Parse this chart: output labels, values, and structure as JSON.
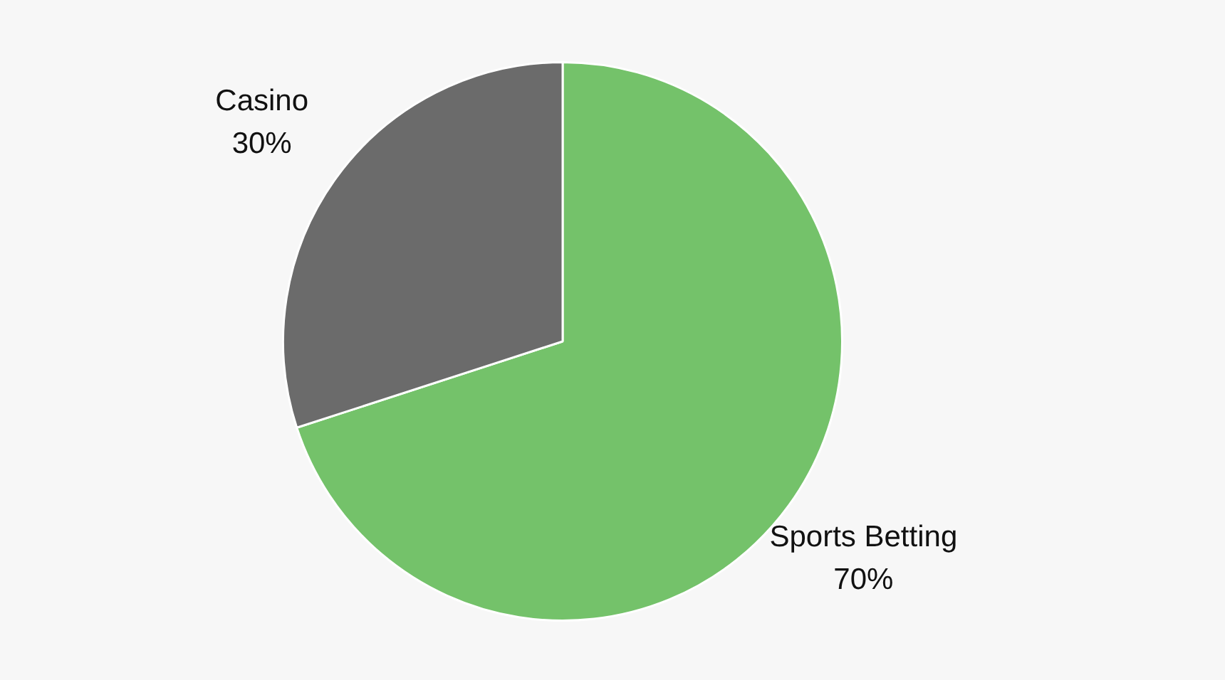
{
  "chart_data": {
    "type": "pie",
    "categories": [
      "Sports Betting",
      "Casino"
    ],
    "values": [
      70,
      30
    ],
    "colors": [
      "#74c26a",
      "#6b6b6b"
    ],
    "value_labels": [
      "70%",
      "30%"
    ],
    "legend": false
  }
}
